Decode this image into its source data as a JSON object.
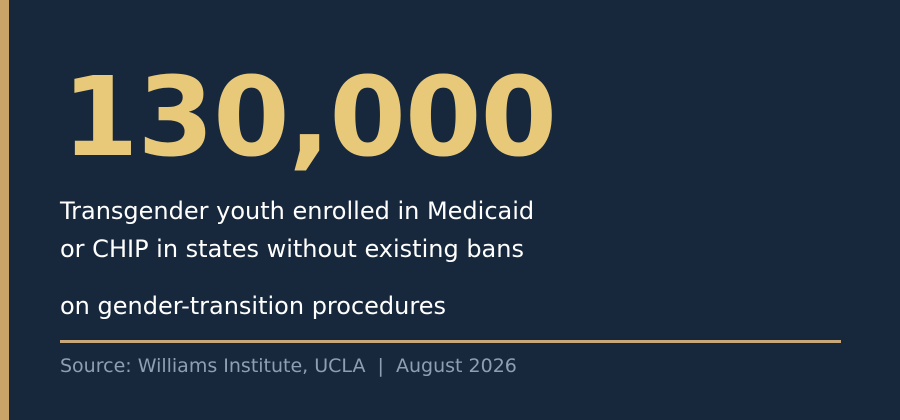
{
  "stat": {
    "value": "130,000",
    "description": [
      "Transgender youth enrolled in Medicaid",
      "or CHIP in states without existing bans",
      "on gender-transition procedures"
    ],
    "source": "Source: Williams Institute, UCLA  |  August 2026"
  }
}
